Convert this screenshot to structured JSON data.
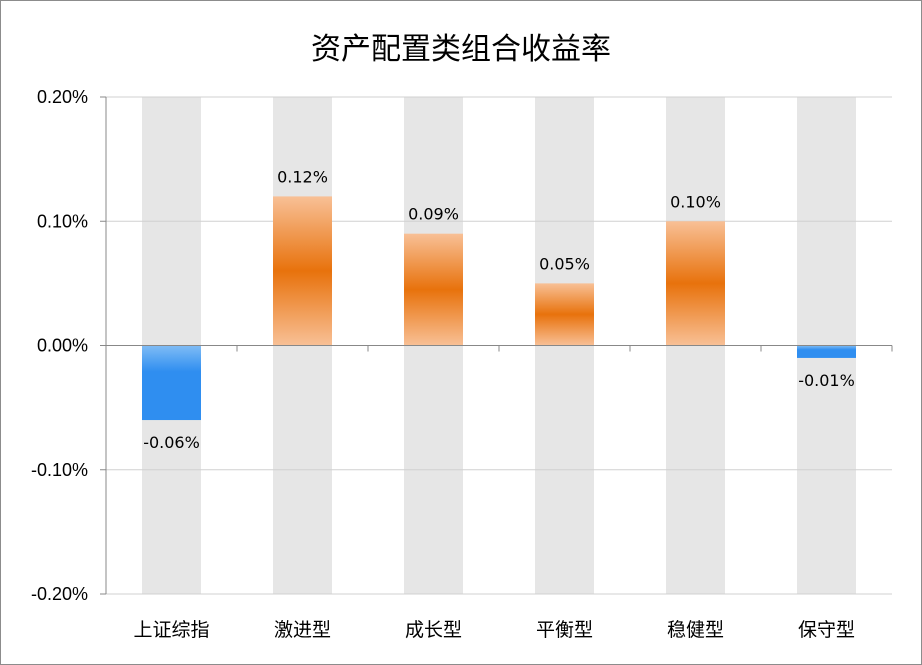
{
  "chart_data": {
    "type": "bar",
    "title": "资产配置类组合收益率",
    "categories": [
      "上证综指",
      "激进型",
      "成长型",
      "平衡型",
      "稳健型",
      "保守型"
    ],
    "series": [
      {
        "values": [
          -0.06,
          0.12,
          0.09,
          0.05,
          0.1,
          -0.01
        ],
        "labels": [
          "-0.06%",
          "0.12%",
          "0.09%",
          "0.05%",
          "0.10%",
          "-0.01%"
        ]
      }
    ],
    "ylim": [
      -0.2,
      0.2
    ],
    "yticks": [
      0.2,
      0.1,
      0.0,
      -0.1,
      -0.2
    ],
    "ytick_labels": [
      "0.20%",
      "0.10%",
      "0.00%",
      "-0.10%",
      "-0.20%"
    ],
    "grid": true,
    "colors": {
      "positive_light": "#f8c096",
      "positive_dark": "#e8720c",
      "negative_light": "#7fbcf5",
      "negative_dark": "#2f8ef0",
      "background_column": "#e6e6e6",
      "gridline": "#d0d0d0",
      "axis": "#888888"
    }
  }
}
